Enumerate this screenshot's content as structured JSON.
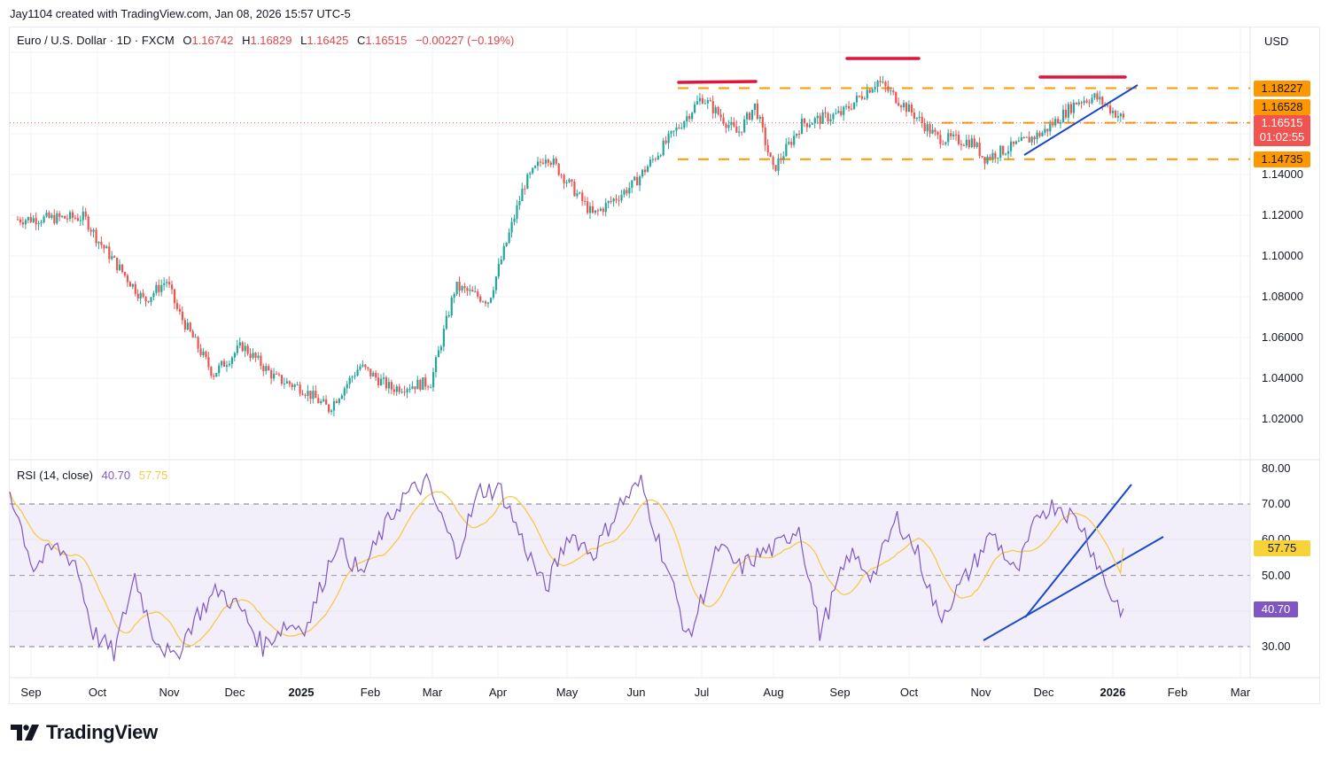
{
  "header": {
    "credit": "Jay1104 created with TradingView.com, Jan 08, 2026 15:57 UTC-5"
  },
  "legend": {
    "symbol": "Euro / U.S. Dollar · 1D · FXCM",
    "o_label": "O",
    "o_value": "1.16742",
    "h_label": "H",
    "h_value": "1.16829",
    "l_label": "L",
    "l_value": "1.16425",
    "c_label": "C",
    "c_value": "1.16515",
    "change": "−0.00227 (−0.19%)"
  },
  "rsi_legend": {
    "label": "RSI (14, close)",
    "rsi_value": "40.70",
    "ma_value": "57.75"
  },
  "price_axis": {
    "currency": "USD",
    "ticks": [
      "1.14000",
      "1.12000",
      "1.10000",
      "1.08000",
      "1.06000",
      "1.04000",
      "1.02000"
    ],
    "tags": {
      "resistance": "1.18227",
      "mid": "1.16528",
      "last_price": "1.16515",
      "countdown": "01:02:55",
      "support": "1.14735"
    }
  },
  "rsi_axis": {
    "ticks": [
      "80.00",
      "70.00",
      "60.00",
      "50.00",
      "30.00"
    ],
    "tags": {
      "ma": "57.75",
      "rsi": "40.70"
    }
  },
  "time_axis": {
    "labels": [
      "Sep",
      "Oct",
      "Nov",
      "Dec",
      "2025",
      "Feb",
      "Mar",
      "Apr",
      "May",
      "Jun",
      "Jul",
      "Aug",
      "Sep",
      "Oct",
      "Nov",
      "Dec",
      "2026",
      "Feb",
      "Mar"
    ]
  },
  "brand": {
    "name": "TradingView"
  },
  "colors": {
    "up": "#26a69a",
    "down": "#ef5350",
    "level": "#ff9800",
    "trendline": "#1848cc",
    "annotation": "#e0143c",
    "rsi": "#7e57c2",
    "rsi_ma": "#f7c948",
    "rsi_band": "#f3effa"
  },
  "chart_data": [
    {
      "type": "candlestick",
      "title": "Euro / U.S. Dollar · 1D · FXCM",
      "xlabel": "",
      "ylabel": "USD",
      "x_ticks": [
        "Sep",
        "Oct",
        "Nov",
        "Dec",
        "2025",
        "Feb",
        "Mar",
        "Apr",
        "May",
        "Jun",
        "Jul",
        "Aug",
        "Sep",
        "Oct",
        "Nov",
        "Dec",
        "2026",
        "Feb",
        "Mar"
      ],
      "ylim": [
        1.005,
        1.195
      ],
      "grid": true,
      "approx_close_path": {
        "x": [
          "2024-08-26",
          "2024-09-25",
          "2024-10-01",
          "2024-10-22",
          "2024-11-01",
          "2024-11-06",
          "2024-11-22",
          "2024-12-05",
          "2024-12-20",
          "2025-01-01",
          "2025-01-13",
          "2025-01-27",
          "2025-02-10",
          "2025-02-28",
          "2025-03-11",
          "2025-03-26",
          "2025-04-11",
          "2025-04-21",
          "2025-05-12",
          "2025-05-30",
          "2025-06-30",
          "2025-07-16",
          "2025-07-24",
          "2025-08-01",
          "2025-08-14",
          "2025-09-01",
          "2025-09-17",
          "2025-10-01",
          "2025-10-14",
          "2025-10-30",
          "2025-11-04",
          "2025-11-20",
          "2025-12-01",
          "2025-12-16",
          "2025-12-24",
          "2026-01-08"
        ],
        "close": [
          1.118,
          1.119,
          1.108,
          1.078,
          1.088,
          1.073,
          1.042,
          1.056,
          1.04,
          1.035,
          1.025,
          1.046,
          1.035,
          1.038,
          1.085,
          1.078,
          1.135,
          1.15,
          1.12,
          1.135,
          1.178,
          1.16,
          1.174,
          1.142,
          1.165,
          1.17,
          1.186,
          1.172,
          1.158,
          1.156,
          1.148,
          1.155,
          1.161,
          1.176,
          1.178,
          1.16515
        ]
      },
      "last": {
        "open": 1.16742,
        "high": 1.16829,
        "low": 1.16425,
        "close": 1.16515,
        "change": -0.00227,
        "change_pct": -0.19
      },
      "horizontal_levels": [
        1.18227,
        1.16528,
        1.14735
      ],
      "annotations": [
        "Red marker above Jul 2025 high (~1.182)",
        "Red marker above Sep 2025 high (~1.192)",
        "Red marker above Dec 2025/Jan 2026 high (~1.183)",
        "Blue rising trendline from Nov 2025 low (~1.149) to Jan 2026, broken to downside"
      ]
    },
    {
      "type": "line",
      "title": "RSI (14, close)",
      "ylim": [
        20,
        80
      ],
      "bands": {
        "upper": 70,
        "middle": 50,
        "lower": 30
      },
      "series": [
        {
          "name": "RSI",
          "last": 40.7,
          "points": [
            [
              0,
              74
            ],
            [
              3,
              66
            ],
            [
              8,
              52
            ],
            [
              15,
              58
            ],
            [
              22,
              54
            ],
            [
              28,
              34
            ],
            [
              35,
              28
            ],
            [
              42,
              50
            ],
            [
              48,
              34
            ],
            [
              55,
              26
            ],
            [
              62,
              38
            ],
            [
              70,
              46
            ],
            [
              78,
              40
            ],
            [
              85,
              30
            ],
            [
              92,
              36
            ],
            [
              100,
              36
            ],
            [
              110,
              60
            ],
            [
              118,
              50
            ],
            [
              125,
              62
            ],
            [
              132,
              72
            ],
            [
              140,
              76
            ],
            [
              150,
              56
            ],
            [
              158,
              74
            ],
            [
              165,
              74
            ],
            [
              172,
              60
            ],
            [
              180,
              46
            ],
            [
              188,
              62
            ],
            [
              196,
              56
            ],
            [
              205,
              70
            ],
            [
              212,
              76
            ],
            [
              220,
              54
            ],
            [
              228,
              32
            ],
            [
              238,
              58
            ],
            [
              245,
              52
            ],
            [
              252,
              56
            ],
            [
              258,
              58
            ],
            [
              265,
              64
            ],
            [
              272,
              34
            ],
            [
              282,
              56
            ],
            [
              290,
              50
            ],
            [
              298,
              66
            ],
            [
              305,
              56
            ],
            [
              312,
              38
            ],
            [
              320,
              48
            ],
            [
              330,
              62
            ],
            [
              338,
              50
            ],
            [
              346,
              68
            ],
            [
              352,
              70
            ],
            [
              360,
              64
            ],
            [
              370,
              44
            ],
            [
              374,
              40
            ]
          ]
        },
        {
          "name": "RSI-based MA",
          "last": 57.75
        }
      ],
      "annotations": [
        "Blue trendline from Nov 2025 RSI low (~32) up through Dec low (~38)",
        "Steeper blue trendline from Dec low (~38) up to ~76, both broken to downside"
      ]
    }
  ]
}
